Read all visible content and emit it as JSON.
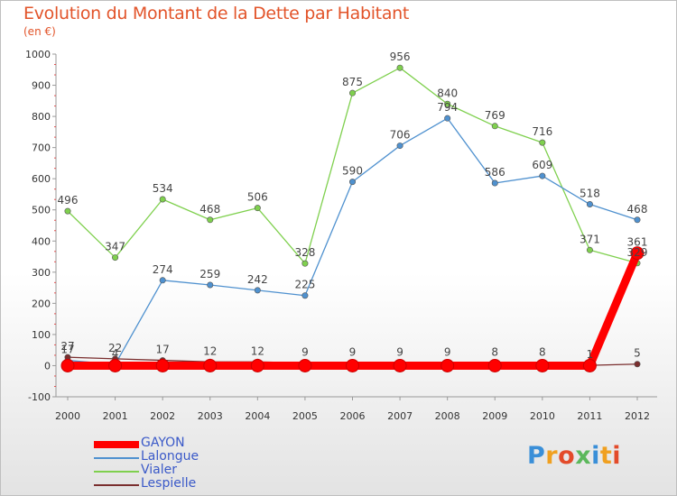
{
  "chart_data": {
    "type": "line",
    "title": "Evolution du Montant de la Dette par Habitant",
    "subtitle": "(en €)",
    "x": [
      "2000",
      "2001",
      "2002",
      "2003",
      "2004",
      "2005",
      "2006",
      "2007",
      "2008",
      "2009",
      "2010",
      "2011",
      "2012"
    ],
    "ylim": [
      -100,
      1000
    ],
    "yticks": [
      "-100",
      "0",
      "100",
      "200",
      "300",
      "400",
      "500",
      "600",
      "700",
      "800",
      "900",
      "1000"
    ],
    "grid": false,
    "legend_position": "bottom-left",
    "series": [
      {
        "name": "GAYON",
        "color": "#ff0000",
        "values": [
          0,
          0,
          0,
          0,
          0,
          0,
          0,
          0,
          0,
          0,
          0,
          0,
          361
        ],
        "labels": [
          "",
          "",
          "",
          "",
          "",
          "",
          "",
          "",
          "",
          "",
          "",
          "",
          "361"
        ]
      },
      {
        "name": "Lalongue",
        "color": "#4f91cf",
        "values": [
          17,
          4,
          274,
          259,
          242,
          225,
          590,
          706,
          794,
          586,
          609,
          518,
          468
        ],
        "labels": [
          "17",
          "4",
          "274",
          "259",
          "242",
          "225",
          "590",
          "706",
          "794",
          "586",
          "609",
          "518",
          "468"
        ]
      },
      {
        "name": "Vialer",
        "color": "#7fd04e",
        "values": [
          496,
          347,
          534,
          468,
          506,
          328,
          875,
          956,
          840,
          769,
          716,
          371,
          329
        ],
        "labels": [
          "496",
          "347",
          "534",
          "468",
          "506",
          "328",
          "875",
          "956",
          "840",
          "769",
          "716",
          "371",
          "329"
        ]
      },
      {
        "name": "Lespielle",
        "color": "#7a2e2e",
        "values": [
          27,
          22,
          17,
          12,
          12,
          9,
          9,
          9,
          9,
          8,
          8,
          1,
          5
        ],
        "labels": [
          "27",
          "22",
          "17",
          "12",
          "12",
          "9",
          "9",
          "9",
          "9",
          "8",
          "8",
          "1",
          "5"
        ]
      }
    ]
  },
  "logo": {
    "text": "Proxiti"
  }
}
